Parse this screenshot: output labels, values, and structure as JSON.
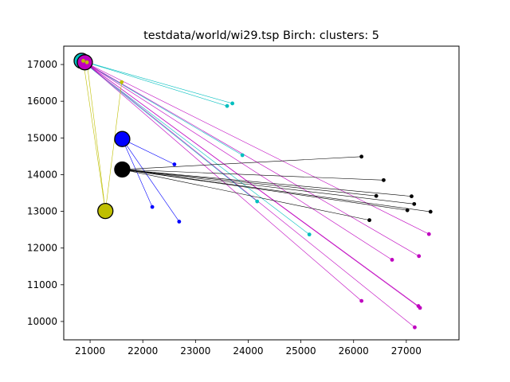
{
  "chart_data": {
    "type": "scatter",
    "title": "testdata/world/wi29.tsp Birch: clusters: 5",
    "xlabel": "",
    "ylabel": "",
    "xlim": [
      20500,
      28000
    ],
    "ylim": [
      9500,
      17500
    ],
    "xticks": [
      21000,
      22000,
      23000,
      24000,
      25000,
      26000,
      27000
    ],
    "xtick_labels": [
      "21000",
      "22000",
      "23000",
      "24000",
      "25000",
      "26000",
      "27000"
    ],
    "yticks": [
      10000,
      11000,
      12000,
      13000,
      14000,
      15000,
      16000,
      17000
    ],
    "ytick_labels": [
      "10000",
      "11000",
      "12000",
      "13000",
      "14000",
      "15000",
      "16000",
      "17000"
    ],
    "grid": false,
    "clusters": [
      {
        "color": "#00bfbf",
        "center": [
          20840,
          17100
        ],
        "points": [
          [
            23600,
            15870
          ],
          [
            23700,
            15940
          ],
          [
            23890,
            14530
          ],
          [
            24170,
            13270
          ],
          [
            25160,
            12370
          ]
        ]
      },
      {
        "color": "#bf00bf",
        "center": [
          20900,
          17060
        ],
        "points": [
          [
            26150,
            10560
          ],
          [
            26730,
            11680
          ],
          [
            27160,
            9840
          ],
          [
            27230,
            10420
          ],
          [
            27260,
            10370
          ],
          [
            27240,
            11780
          ],
          [
            27430,
            12380
          ]
        ]
      },
      {
        "color": "#0000ff",
        "center": [
          21610,
          14970
        ],
        "points": [
          [
            22180,
            13120
          ],
          [
            22600,
            14280
          ],
          [
            22690,
            12720
          ]
        ]
      },
      {
        "color": "#000000",
        "center": [
          21610,
          14140
        ],
        "points": [
          [
            26150,
            14490
          ],
          [
            26570,
            13850
          ],
          [
            26430,
            13420
          ],
          [
            27100,
            13410
          ],
          [
            27150,
            13200
          ],
          [
            27020,
            13030
          ],
          [
            27460,
            12990
          ],
          [
            26300,
            12760
          ]
        ]
      },
      {
        "color": "#bfbf00",
        "center": [
          21290,
          13010
        ],
        "points": [
          [
            21600,
            16520
          ],
          [
            20870,
            17100
          ],
          [
            20940,
            17060
          ]
        ]
      }
    ]
  }
}
